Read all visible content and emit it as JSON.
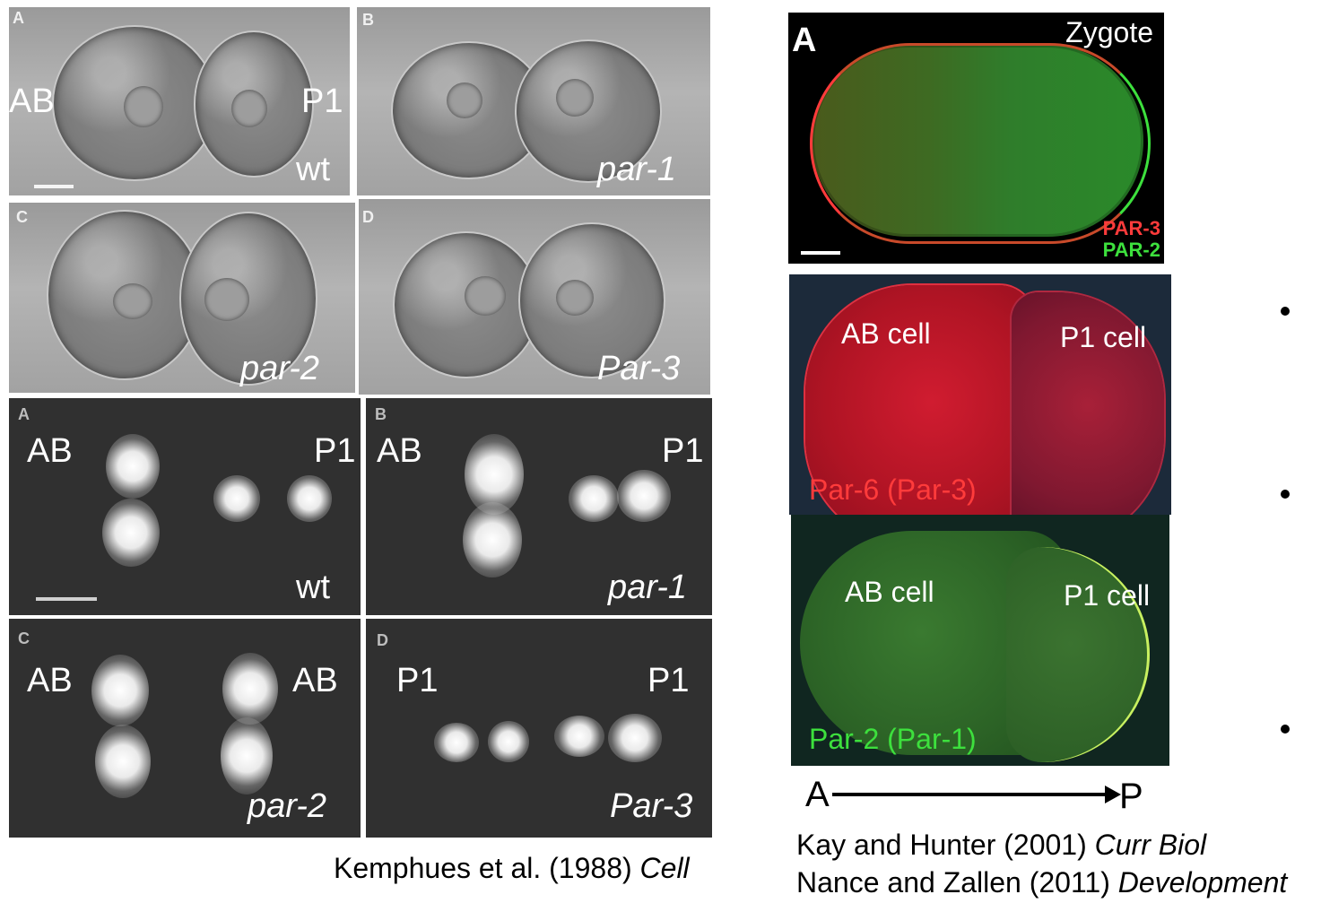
{
  "dic_panels": [
    {
      "letter": "A",
      "genotype": "wt",
      "left_cell": "AB",
      "right_cell": "P1"
    },
    {
      "letter": "B",
      "genotype": "par-1"
    },
    {
      "letter": "C",
      "genotype": "par-2"
    },
    {
      "letter": "D",
      "genotype": "Par-3"
    }
  ],
  "spindle_panels": [
    {
      "letter": "A",
      "left": "AB",
      "right": "P1",
      "genotype": "wt"
    },
    {
      "letter": "B",
      "left": "AB",
      "right": "P1",
      "genotype": "par-1"
    },
    {
      "letter": "C",
      "left": "AB",
      "right": "AB",
      "genotype": "par-2"
    },
    {
      "letter": "D",
      "left": "P1",
      "right": "P1",
      "genotype": "Par-3"
    }
  ],
  "citation_left": {
    "authors": "Kemphues et al. (1988) ",
    "journal": "Cell"
  },
  "zygote": {
    "letter": "A",
    "title": "Zygote",
    "legend_red": "PAR-3",
    "legend_green": "PAR-2",
    "red": "#ff3b3b",
    "green": "#3de03d"
  },
  "two_cell_red": {
    "ab": "AB cell",
    "p1": "P1 cell",
    "caption": "Par-6 (Par-3)"
  },
  "two_cell_green": {
    "ab": "AB cell",
    "p1": "P1 cell",
    "caption": "Par-2 (Par-1)"
  },
  "axis": {
    "anterior": "A",
    "posterior": "P"
  },
  "citations_right": [
    {
      "authors": "Kay and Hunter (2001) ",
      "journal": "Curr Biol"
    },
    {
      "authors": "Nance and Zallen (2011) ",
      "journal": "Development"
    }
  ]
}
